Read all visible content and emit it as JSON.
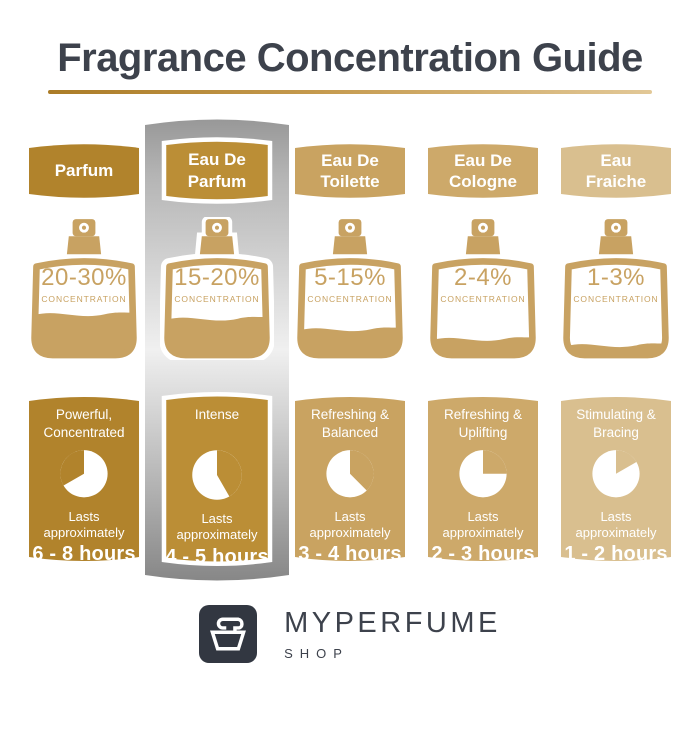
{
  "title": "Fragrance Concentration Guide",
  "labels": {
    "concentration": "CONCENTRATION",
    "lasts": "Lasts approximately"
  },
  "footer": {
    "brand": "MYPERFUME",
    "sub": "SHOP"
  },
  "colors": {
    "title": "#3d424c",
    "bottle": "#c8a262",
    "underline_start": "#ab7c27",
    "underline_end": "#e2c897",
    "highlight_gray_top": "#989898",
    "highlight_gray_mid": "#f0f0f0",
    "highlight_gray_bottom": "#878787"
  },
  "columns": [
    {
      "name": "Parfum",
      "concentration": "20-30%",
      "description": "Powerful, Concentrated",
      "duration": "6 - 8 hours",
      "color": "#b1832c",
      "fill_level": 0.45,
      "clock_wedge": {
        "from": 240,
        "to": 360
      },
      "highlighted": false
    },
    {
      "name": "Eau De Parfum",
      "concentration": "15-20%",
      "description": "Intense",
      "duration": "4 - 5 hours",
      "color": "#bb8e36",
      "fill_level": 0.4,
      "clock_wedge": {
        "from": 0,
        "to": 150
      },
      "highlighted": true
    },
    {
      "name": "Eau De Toilette",
      "concentration": "5-15%",
      "description": "Refreshing & Balanced",
      "duration": "3 - 4 hours",
      "color": "#c9a361",
      "fill_level": 0.28,
      "clock_wedge": {
        "from": 0,
        "to": 135
      },
      "highlighted": false
    },
    {
      "name": "Eau De Cologne",
      "concentration": "2-4%",
      "description": "Refreshing & Uplifting",
      "duration": "2 - 3 hours",
      "color": "#cda96a",
      "fill_level": 0.17,
      "clock_wedge": {
        "from": 0,
        "to": 90
      },
      "highlighted": false
    },
    {
      "name": "Eau Fraiche",
      "concentration": "1-3%",
      "description": "Stimulating & Bracing",
      "duration": "1 - 2 hours",
      "color": "#d9bf8f",
      "fill_level": 0.1,
      "clock_wedge": {
        "from": 0,
        "to": 60
      },
      "highlighted": false
    }
  ]
}
